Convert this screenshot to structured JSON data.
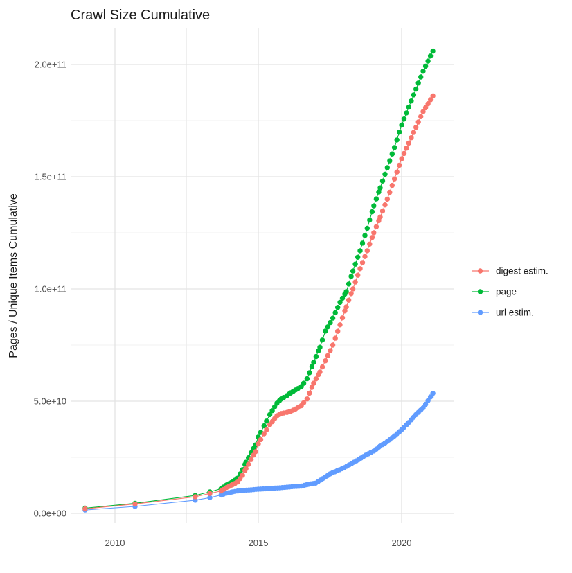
{
  "title": "Crawl Size Cumulative",
  "axes": {
    "y_label": "Pages / Unique Items Cumulative",
    "y_ticks": [
      {
        "label": "0.0e+00",
        "value": 0
      },
      {
        "label": "5.0e+10",
        "value": 50000000000.0
      },
      {
        "label": "1.0e+11",
        "value": 100000000000.0
      },
      {
        "label": "1.5e+11",
        "value": 150000000000.0
      },
      {
        "label": "2.0e+11",
        "value": 200000000000.0
      }
    ],
    "y_minor_values": [
      25000000000.0,
      75000000000.0,
      125000000000.0,
      175000000000.0
    ],
    "x_ticks": [
      {
        "label": "2010",
        "value": 2010
      },
      {
        "label": "2015",
        "value": 2015
      },
      {
        "label": "2020",
        "value": 2020
      }
    ],
    "x_minor_values": [
      2012.5,
      2017.5
    ]
  },
  "legend": {
    "items": [
      {
        "label": "digest estim.",
        "series": "digest estim.",
        "color": "#F8766D"
      },
      {
        "label": "page",
        "series": "page",
        "color": "#00BA38"
      },
      {
        "label": "url estim.",
        "series": "url estim.",
        "color": "#619CFF"
      }
    ]
  },
  "colors": {
    "digest": "#F8766D",
    "page": "#00BA38",
    "url": "#619CFF",
    "grid_major": "#e3e3e3",
    "grid_minor": "#ebebeb",
    "text": "#1a1a1a",
    "tick_text": "#4d4d4d",
    "background": "#ffffff"
  },
  "chart_data": {
    "type": "scatter",
    "mode": "lines+markers",
    "title": "Crawl Size Cumulative",
    "xlabel": "",
    "ylabel": "Pages / Unique Items Cumulative",
    "xlim": [
      2008.4,
      2021.8
    ],
    "ylim": [
      0,
      210000000000.0
    ],
    "grid": true,
    "legend_position": "right",
    "series": [
      {
        "name": "digest estim.",
        "color": "#F8766D",
        "points": [
          [
            2008.96,
            2000000000.0
          ],
          [
            2010.7,
            4200000000.0
          ],
          [
            2012.8,
            7400000000.0
          ],
          [
            2013.31,
            8900000000.0
          ],
          [
            2013.7,
            10000000000.0
          ],
          [
            2013.89,
            11500000000.0
          ],
          [
            2014.1,
            12800000000.0
          ],
          [
            2014.28,
            14000000000.0
          ],
          [
            2014.45,
            17000000000.0
          ],
          [
            2014.57,
            20000000000.0
          ],
          [
            2014.75,
            24000000000.0
          ],
          [
            2014.9,
            27500000000.0
          ],
          [
            2015.0,
            31000000000.0
          ],
          [
            2015.2,
            35500000000.0
          ],
          [
            2015.4,
            39500000000.0
          ],
          [
            2015.65,
            43500000000.0
          ],
          [
            2015.8,
            44500000000.0
          ],
          [
            2016.0,
            45000000000.0
          ],
          [
            2016.13,
            45500000000.0
          ],
          [
            2016.3,
            46500000000.0
          ],
          [
            2016.5,
            48000000000.0
          ],
          [
            2016.7,
            51000000000.0
          ],
          [
            2016.93,
            58000000000.0
          ],
          [
            2017.15,
            63000000000.0
          ],
          [
            2017.34,
            68000000000.0
          ],
          [
            2017.6,
            75000000000.0
          ],
          [
            2017.85,
            84000000000.0
          ],
          [
            2018.07,
            92000000000.0
          ],
          [
            2018.3,
            100000000000.0
          ],
          [
            2018.55,
            109000000000.0
          ],
          [
            2018.8,
            117000000000.0
          ],
          [
            2019.03,
            125000000000.0
          ],
          [
            2019.25,
            132000000000.0
          ],
          [
            2019.5,
            140000000000.0
          ],
          [
            2019.75,
            149000000000.0
          ],
          [
            2020.0,
            158000000000.0
          ],
          [
            2020.25,
            165000000000.0
          ],
          [
            2020.5,
            172000000000.0
          ],
          [
            2020.75,
            179000000000.0
          ],
          [
            2021.09,
            186000000000.0
          ]
        ]
      },
      {
        "name": "page",
        "color": "#00BA38",
        "points": [
          [
            2008.96,
            2300000000.0
          ],
          [
            2010.7,
            4500000000.0
          ],
          [
            2012.8,
            8000000000.0
          ],
          [
            2013.31,
            9600000000.0
          ],
          [
            2013.7,
            11000000000.0
          ],
          [
            2013.89,
            12700000000.0
          ],
          [
            2014.1,
            14000000000.0
          ],
          [
            2014.28,
            15700000000.0
          ],
          [
            2014.45,
            19500000000.0
          ],
          [
            2014.57,
            22800000000.0
          ],
          [
            2014.75,
            27000000000.0
          ],
          [
            2014.9,
            30500000000.0
          ],
          [
            2015.0,
            34000000000.0
          ],
          [
            2015.2,
            39000000000.0
          ],
          [
            2015.4,
            44000000000.0
          ],
          [
            2015.65,
            49100000000.0
          ],
          [
            2015.8,
            51000000000.0
          ],
          [
            2016.0,
            52500000000.0
          ],
          [
            2016.13,
            53700000000.0
          ],
          [
            2016.3,
            55000000000.0
          ],
          [
            2016.5,
            56500000000.0
          ],
          [
            2016.7,
            60000000000.0
          ],
          [
            2016.93,
            67300000000.0
          ],
          [
            2017.15,
            74000000000.0
          ],
          [
            2017.34,
            81200000000.0
          ],
          [
            2017.6,
            87000000000.0
          ],
          [
            2017.85,
            94000000000.0
          ],
          [
            2018.07,
            98800000000.0
          ],
          [
            2018.3,
            108000000000.0
          ],
          [
            2018.55,
            117000000000.0
          ],
          [
            2018.8,
            127000000000.0
          ],
          [
            2019.03,
            137000000000.0
          ],
          [
            2019.25,
            145000000000.0
          ],
          [
            2019.5,
            154000000000.0
          ],
          [
            2019.75,
            163000000000.0
          ],
          [
            2020.0,
            173000000000.0
          ],
          [
            2020.25,
            181000000000.0
          ],
          [
            2020.5,
            189000000000.0
          ],
          [
            2020.75,
            197000000000.0
          ],
          [
            2021.09,
            206000000000.0
          ]
        ]
      },
      {
        "name": "url estim.",
        "color": "#619CFF",
        "points": [
          [
            2008.96,
            1500000000.0
          ],
          [
            2010.7,
            3100000000.0
          ],
          [
            2012.8,
            5900000000.0
          ],
          [
            2013.31,
            7000000000.0
          ],
          [
            2013.7,
            8200000000.0
          ],
          [
            2013.89,
            9000000000.0
          ],
          [
            2014.1,
            9600000000.0
          ],
          [
            2014.28,
            10000000000.0
          ],
          [
            2014.5,
            10300000000.0
          ],
          [
            2014.75,
            10500000000.0
          ],
          [
            2015.0,
            10800000000.0
          ],
          [
            2015.25,
            11000000000.0
          ],
          [
            2015.5,
            11200000000.0
          ],
          [
            2015.75,
            11400000000.0
          ],
          [
            2016.0,
            11700000000.0
          ],
          [
            2016.25,
            12000000000.0
          ],
          [
            2016.5,
            12200000000.0
          ],
          [
            2016.6,
            12500000000.0
          ],
          [
            2016.75,
            13000000000.0
          ],
          [
            2017.0,
            13500000000.0
          ],
          [
            2017.25,
            15500000000.0
          ],
          [
            2017.5,
            17600000000.0
          ],
          [
            2017.75,
            19000000000.0
          ],
          [
            2018.0,
            20400000000.0
          ],
          [
            2018.25,
            22200000000.0
          ],
          [
            2018.5,
            24000000000.0
          ],
          [
            2018.75,
            26000000000.0
          ],
          [
            2019.03,
            27800000000.0
          ],
          [
            2019.25,
            30000000000.0
          ],
          [
            2019.5,
            32000000000.0
          ],
          [
            2019.75,
            34500000000.0
          ],
          [
            2020.0,
            37300000000.0
          ],
          [
            2020.25,
            40500000000.0
          ],
          [
            2020.5,
            44000000000.0
          ],
          [
            2020.75,
            47000000000.0
          ],
          [
            2021.09,
            53500000000.0
          ]
        ]
      }
    ],
    "render": {
      "dense_from_year": 2013.6,
      "point_interval_years": 0.085,
      "draw_order": [
        "url estim.",
        "page",
        "digest estim."
      ]
    }
  }
}
